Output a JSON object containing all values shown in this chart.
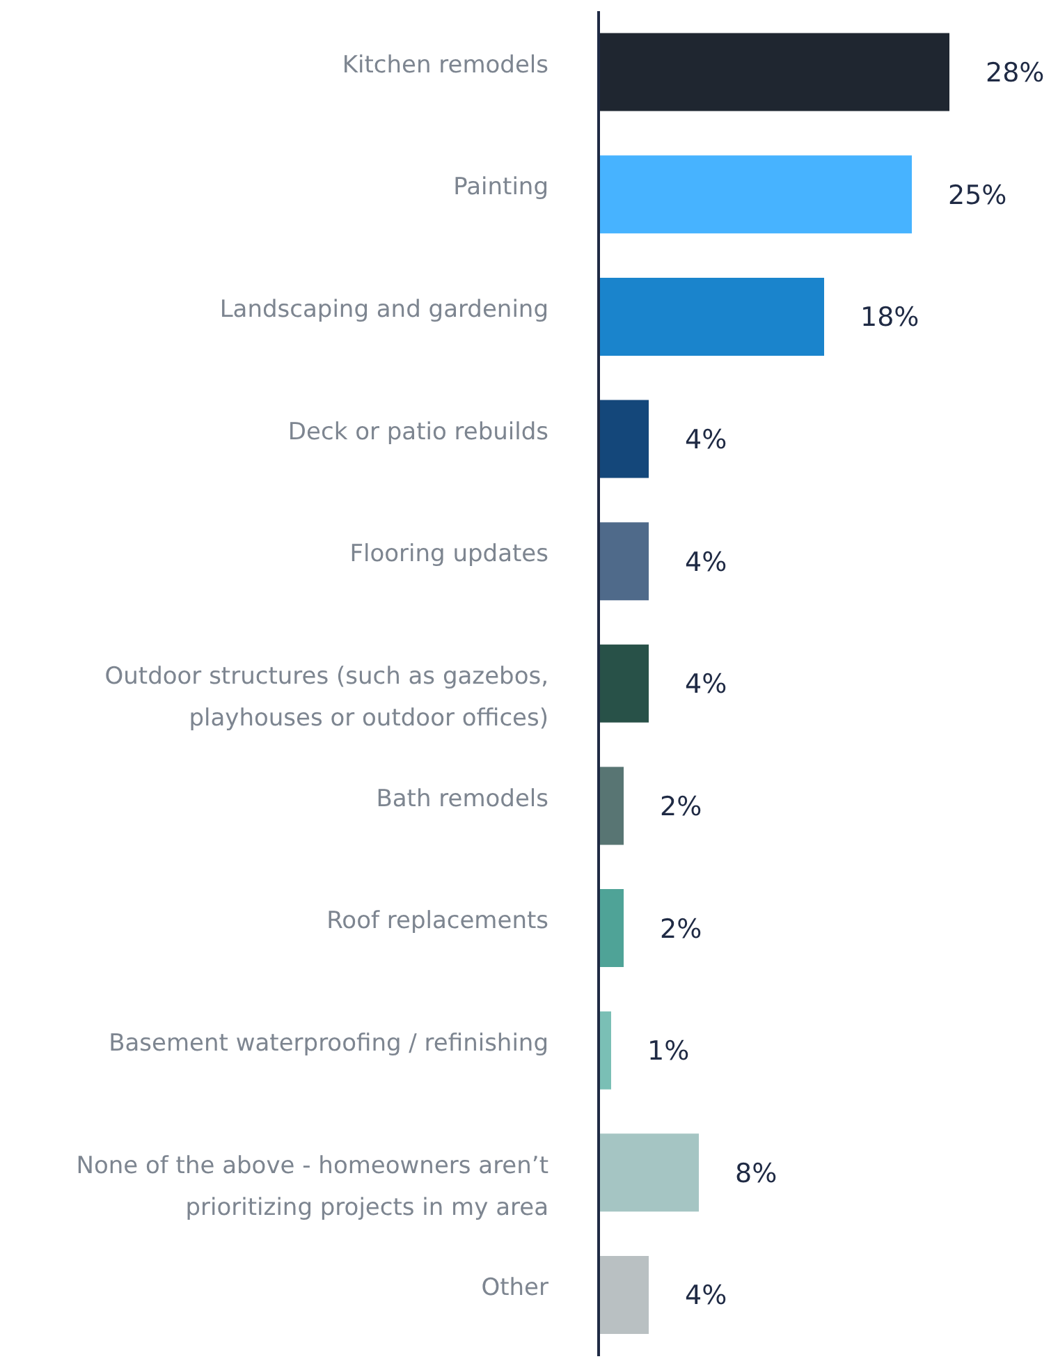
{
  "chart_data": {
    "type": "bar",
    "orientation": "horizontal",
    "categories": [
      "Kitchen remodels",
      "Painting",
      "Landscaping and gardening",
      "Deck or patio rebuilds",
      "Flooring updates",
      "Outdoor structures (such as gazebos, playhouses or outdoor offices)",
      "Bath remodels",
      "Roof replacements",
      "Basement waterproofing / refinishing",
      "None of the above - homeowners aren’t prioritizing projects in my area",
      "Other"
    ],
    "values": [
      28,
      25,
      18,
      4,
      4,
      4,
      2,
      2,
      1,
      8,
      4
    ],
    "value_labels": [
      "28%",
      "25%",
      "18%",
      "4%",
      "4%",
      "4%",
      "2%",
      "2%",
      "1%",
      "8%",
      "4%"
    ],
    "colors": [
      "#1f2630",
      "#47b3ff",
      "#1a84cc",
      "#14477a",
      "#4f6a8a",
      "#285148",
      "#587573",
      "#4fa397",
      "#7abfb5",
      "#a5c5c3",
      "#b9c0c2"
    ],
    "grid": false,
    "legend": false
  }
}
